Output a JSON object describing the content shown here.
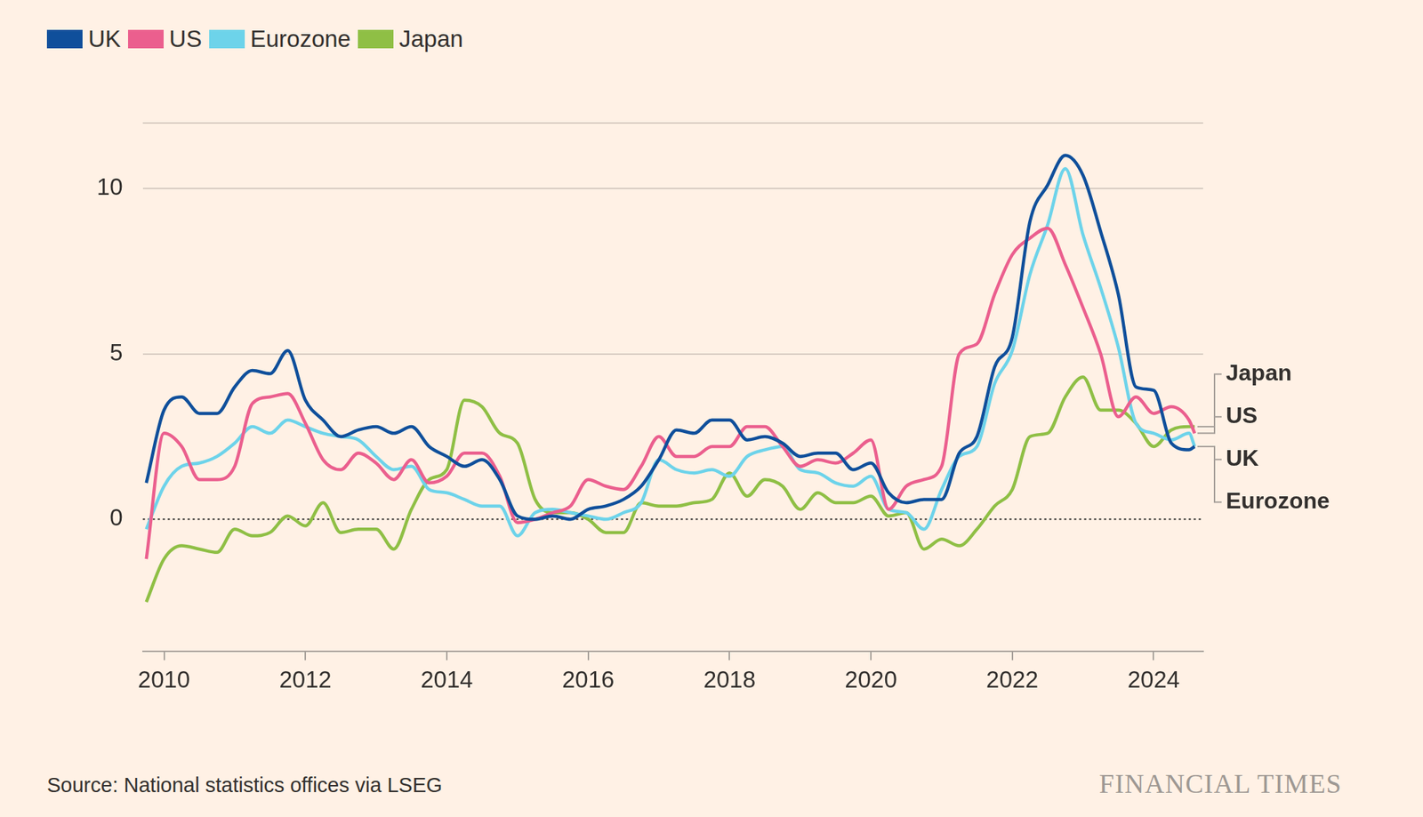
{
  "chart_data": {
    "type": "line",
    "source": "Source: National statistics offices via LSEG",
    "credit": "FINANCIAL TIMES",
    "legend": "top-left",
    "grid": true,
    "xlim": [
      2009.7,
      2024.7
    ],
    "xticks": [
      2010,
      2012,
      2014,
      2016,
      2018,
      2020,
      2022,
      2024
    ],
    "ylim": [
      -4,
      12
    ],
    "yticks": [
      0,
      5,
      10
    ],
    "annotations": [
      "Japan",
      "US",
      "UK",
      "Eurozone"
    ],
    "x": [
      2009.75,
      2010,
      2010.25,
      2010.5,
      2010.75,
      2011,
      2011.25,
      2011.5,
      2011.75,
      2012,
      2012.25,
      2012.5,
      2012.75,
      2013,
      2013.25,
      2013.5,
      2013.75,
      2014,
      2014.25,
      2014.5,
      2014.75,
      2015,
      2015.25,
      2015.5,
      2015.75,
      2016,
      2016.25,
      2016.5,
      2016.75,
      2017,
      2017.25,
      2017.5,
      2017.75,
      2018,
      2018.25,
      2018.5,
      2018.75,
      2019,
      2019.25,
      2019.5,
      2019.75,
      2020,
      2020.25,
      2020.5,
      2020.75,
      2021,
      2021.25,
      2021.5,
      2021.75,
      2022,
      2022.25,
      2022.5,
      2022.75,
      2023,
      2023.25,
      2023.5,
      2023.75,
      2024,
      2024.25,
      2024.5,
      2024.58
    ],
    "series": [
      {
        "name": "UK",
        "color": "#0f4f9b",
        "values": [
          1.1,
          3.3,
          3.7,
          3.2,
          3.2,
          4.0,
          4.5,
          4.4,
          5.1,
          3.6,
          3.0,
          2.5,
          2.7,
          2.8,
          2.6,
          2.8,
          2.2,
          1.9,
          1.6,
          1.8,
          1.2,
          0.1,
          0.0,
          0.1,
          0.0,
          0.3,
          0.4,
          0.6,
          1.0,
          1.8,
          2.7,
          2.6,
          3.0,
          3.0,
          2.4,
          2.5,
          2.3,
          1.9,
          2.0,
          2.0,
          1.5,
          1.7,
          0.8,
          0.5,
          0.6,
          0.6,
          2.0,
          2.5,
          4.6,
          5.5,
          9.0,
          10.1,
          11.0,
          10.4,
          8.7,
          6.8,
          4.0,
          3.9,
          2.3,
          2.1,
          2.2
        ]
      },
      {
        "name": "US",
        "color": "#eb5f8e",
        "values": [
          -1.2,
          2.6,
          2.2,
          1.2,
          1.2,
          1.6,
          3.5,
          3.7,
          3.8,
          2.9,
          1.8,
          1.5,
          2.0,
          1.7,
          1.2,
          1.8,
          1.1,
          1.3,
          2.0,
          2.0,
          1.3,
          -0.1,
          0.0,
          0.2,
          0.4,
          1.2,
          1.0,
          0.9,
          1.6,
          2.5,
          1.9,
          1.9,
          2.2,
          2.2,
          2.8,
          2.8,
          2.2,
          1.6,
          1.8,
          1.7,
          2.0,
          2.4,
          0.3,
          1.0,
          1.2,
          1.6,
          5.0,
          5.3,
          6.8,
          8.0,
          8.5,
          8.8,
          7.7,
          6.4,
          5.0,
          3.1,
          3.7,
          3.2,
          3.4,
          3.0,
          2.6
        ]
      },
      {
        "name": "Eurozone",
        "color": "#6dd3ea",
        "values": [
          -0.3,
          1.0,
          1.6,
          1.7,
          1.9,
          2.3,
          2.8,
          2.6,
          3.0,
          2.8,
          2.6,
          2.5,
          2.4,
          1.9,
          1.5,
          1.6,
          0.9,
          0.8,
          0.6,
          0.4,
          0.4,
          -0.5,
          0.2,
          0.3,
          0.2,
          0.1,
          0.0,
          0.2,
          0.5,
          1.8,
          1.5,
          1.4,
          1.5,
          1.3,
          1.9,
          2.1,
          2.2,
          1.5,
          1.4,
          1.1,
          1.0,
          1.3,
          0.3,
          0.2,
          -0.3,
          0.9,
          1.9,
          2.2,
          4.1,
          5.1,
          7.4,
          8.9,
          10.6,
          8.6,
          7.0,
          5.2,
          2.9,
          2.6,
          2.4,
          2.6,
          2.2
        ]
      },
      {
        "name": "Japan",
        "color": "#8fbf45",
        "values": [
          -2.5,
          -1.2,
          -0.8,
          -0.9,
          -1.0,
          -0.3,
          -0.5,
          -0.4,
          0.1,
          -0.2,
          0.5,
          -0.4,
          -0.3,
          -0.3,
          -0.9,
          0.3,
          1.2,
          1.5,
          3.6,
          3.4,
          2.6,
          2.3,
          0.6,
          0.2,
          0.2,
          0.0,
          -0.4,
          -0.4,
          0.5,
          0.4,
          0.4,
          0.5,
          0.6,
          1.4,
          0.7,
          1.2,
          1.0,
          0.3,
          0.8,
          0.5,
          0.5,
          0.7,
          0.1,
          0.2,
          -0.9,
          -0.6,
          -0.8,
          -0.3,
          0.4,
          0.9,
          2.5,
          2.6,
          3.7,
          4.3,
          3.3,
          3.3,
          2.9,
          2.2,
          2.7,
          2.8,
          2.8
        ]
      }
    ]
  }
}
